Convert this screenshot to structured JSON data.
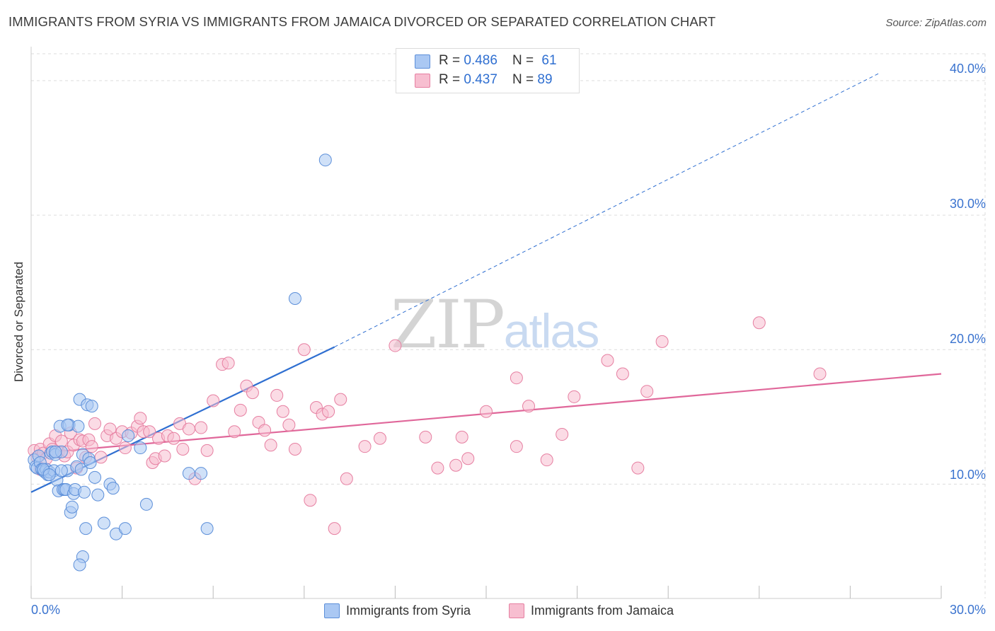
{
  "title": "IMMIGRANTS FROM SYRIA VS IMMIGRANTS FROM JAMAICA DIVORCED OR SEPARATED CORRELATION CHART",
  "source": "Source: ZipAtlas.com",
  "watermark": {
    "zip": "ZIP",
    "atlas": "atlas"
  },
  "colors": {
    "syria_fill": "#aac8f3",
    "syria_stroke": "#5c8fd9",
    "syria_line": "#2f6fd1",
    "jamaica_fill": "#f7bed0",
    "jamaica_stroke": "#e67fa1",
    "jamaica_line": "#e0679a",
    "tick_label": "#3a73cf",
    "grid": "#dddddd"
  },
  "legend": {
    "rows": [
      {
        "r_label": "R = ",
        "r_value": "0.486",
        "n_label": "N = ",
        "n_value": "61"
      },
      {
        "r_label": "R = ",
        "r_value": "0.437",
        "n_label": "N = ",
        "n_value": "89"
      }
    ]
  },
  "chart_data": {
    "type": "scatter",
    "title": "IMMIGRANTS FROM SYRIA VS IMMIGRANTS FROM JAMAICA DIVORCED OR SEPARATED CORRELATION CHART",
    "xlabel": "",
    "ylabel": "Divorced or Separated",
    "xlim": [
      0,
      30
    ],
    "ylim": [
      1.5,
      42
    ],
    "x_tick_labels": {
      "left": "0.0%",
      "right": "30.0%"
    },
    "y_ticks": [
      10,
      20,
      30,
      40
    ],
    "y_tick_labels": [
      "10.0%",
      "20.0%",
      "30.0%",
      "40.0%"
    ],
    "grid": true,
    "legend_position": "top-center",
    "series": [
      {
        "name": "Immigrants from Syria",
        "R": 0.486,
        "N": 61,
        "trend": {
          "x0": 0,
          "y0": 9.4,
          "x1": 10.0,
          "y1": 20.2,
          "dashed_to_x": 28.0,
          "dashed_to_y": 40.6
        },
        "points": [
          [
            0.1,
            11.8
          ],
          [
            0.15,
            11.3
          ],
          [
            0.2,
            11.2
          ],
          [
            0.25,
            12.1
          ],
          [
            0.3,
            11.6
          ],
          [
            0.35,
            11.1
          ],
          [
            0.4,
            11.0
          ],
          [
            0.45,
            10.9
          ],
          [
            0.5,
            11.1
          ],
          [
            0.55,
            10.7
          ],
          [
            0.6,
            10.9
          ],
          [
            0.65,
            12.3
          ],
          [
            0.7,
            12.4
          ],
          [
            0.75,
            11.0
          ],
          [
            0.8,
            12.2
          ],
          [
            0.85,
            10.3
          ],
          [
            0.9,
            9.5
          ],
          [
            0.95,
            14.3
          ],
          [
            1.0,
            12.4
          ],
          [
            1.05,
            9.6
          ],
          [
            1.1,
            9.6
          ],
          [
            1.15,
            9.6
          ],
          [
            1.2,
            11.0
          ],
          [
            1.25,
            14.4
          ],
          [
            1.3,
            7.9
          ],
          [
            1.35,
            8.3
          ],
          [
            1.4,
            9.3
          ],
          [
            1.45,
            9.6
          ],
          [
            1.5,
            11.3
          ],
          [
            1.55,
            14.3
          ],
          [
            1.6,
            16.3
          ],
          [
            1.65,
            11.1
          ],
          [
            1.7,
            12.2
          ],
          [
            1.75,
            9.4
          ],
          [
            1.8,
            6.7
          ],
          [
            1.85,
            15.9
          ],
          [
            1.9,
            11.9
          ],
          [
            1.95,
            11.6
          ],
          [
            2.0,
            15.8
          ],
          [
            2.1,
            10.5
          ],
          [
            2.2,
            9.2
          ],
          [
            2.4,
            7.1
          ],
          [
            2.6,
            10.0
          ],
          [
            2.7,
            9.7
          ],
          [
            2.8,
            6.3
          ],
          [
            3.1,
            6.7
          ],
          [
            3.6,
            12.7
          ],
          [
            3.8,
            8.5
          ],
          [
            5.2,
            10.8
          ],
          [
            5.6,
            10.8
          ],
          [
            5.8,
            6.7
          ],
          [
            3.2,
            13.6
          ],
          [
            1.0,
            11.0
          ],
          [
            0.8,
            12.4
          ],
          [
            1.2,
            14.4
          ],
          [
            0.4,
            11.1
          ],
          [
            0.6,
            10.7
          ],
          [
            1.7,
            4.6
          ],
          [
            1.6,
            4.0
          ],
          [
            8.7,
            23.8
          ],
          [
            9.7,
            34.1
          ]
        ]
      },
      {
        "name": "Immigrants from Jamaica",
        "R": 0.437,
        "N": 89,
        "trend": {
          "x0": 0.2,
          "y0": 12.3,
          "x1": 30.0,
          "y1": 18.2
        },
        "points": [
          [
            0.1,
            12.5
          ],
          [
            0.2,
            12.0
          ],
          [
            0.3,
            12.6
          ],
          [
            0.4,
            12.3
          ],
          [
            0.5,
            11.9
          ],
          [
            0.6,
            13.0
          ],
          [
            0.7,
            12.6
          ],
          [
            0.8,
            13.6
          ],
          [
            0.9,
            12.4
          ],
          [
            1.0,
            13.2
          ],
          [
            1.1,
            12.1
          ],
          [
            1.2,
            12.4
          ],
          [
            1.3,
            13.8
          ],
          [
            1.4,
            12.9
          ],
          [
            1.5,
            11.2
          ],
          [
            1.6,
            13.3
          ],
          [
            1.7,
            13.2
          ],
          [
            1.8,
            12.0
          ],
          [
            1.9,
            13.3
          ],
          [
            2.0,
            12.8
          ],
          [
            2.1,
            14.5
          ],
          [
            2.3,
            12.0
          ],
          [
            2.5,
            13.6
          ],
          [
            2.6,
            14.1
          ],
          [
            2.8,
            13.4
          ],
          [
            3.0,
            13.9
          ],
          [
            3.1,
            12.7
          ],
          [
            3.3,
            13.8
          ],
          [
            3.5,
            14.3
          ],
          [
            3.6,
            14.9
          ],
          [
            3.7,
            13.9
          ],
          [
            3.9,
            13.9
          ],
          [
            4.0,
            11.6
          ],
          [
            4.1,
            11.9
          ],
          [
            4.2,
            13.4
          ],
          [
            4.4,
            12.1
          ],
          [
            4.5,
            13.6
          ],
          [
            4.7,
            13.4
          ],
          [
            4.9,
            14.5
          ],
          [
            5.0,
            12.6
          ],
          [
            5.2,
            14.1
          ],
          [
            5.4,
            10.4
          ],
          [
            5.6,
            14.2
          ],
          [
            5.8,
            12.5
          ],
          [
            6.0,
            16.2
          ],
          [
            6.3,
            18.9
          ],
          [
            6.5,
            19.0
          ],
          [
            6.7,
            13.9
          ],
          [
            6.9,
            15.5
          ],
          [
            7.1,
            17.3
          ],
          [
            7.3,
            16.8
          ],
          [
            7.5,
            14.6
          ],
          [
            7.7,
            14.0
          ],
          [
            7.9,
            12.9
          ],
          [
            8.1,
            16.6
          ],
          [
            8.3,
            15.4
          ],
          [
            8.5,
            14.4
          ],
          [
            8.7,
            12.6
          ],
          [
            9.0,
            20.0
          ],
          [
            9.2,
            8.8
          ],
          [
            9.4,
            15.7
          ],
          [
            9.6,
            15.2
          ],
          [
            9.8,
            15.4
          ],
          [
            10.0,
            6.7
          ],
          [
            10.2,
            16.3
          ],
          [
            10.4,
            10.4
          ],
          [
            11.0,
            12.8
          ],
          [
            11.5,
            13.4
          ],
          [
            12.0,
            20.3
          ],
          [
            13.0,
            13.5
          ],
          [
            13.4,
            11.2
          ],
          [
            14.0,
            11.4
          ],
          [
            14.2,
            13.5
          ],
          [
            14.4,
            11.9
          ],
          [
            15.0,
            15.4
          ],
          [
            16.0,
            17.9
          ],
          [
            16.4,
            15.8
          ],
          [
            16.0,
            12.8
          ],
          [
            17.0,
            11.8
          ],
          [
            17.5,
            13.7
          ],
          [
            17.9,
            16.5
          ],
          [
            19.0,
            19.2
          ],
          [
            19.5,
            18.2
          ],
          [
            20.0,
            11.2
          ],
          [
            20.3,
            16.9
          ],
          [
            20.8,
            20.6
          ],
          [
            24.0,
            22.0
          ],
          [
            26.0,
            18.2
          ],
          [
            0.3,
            11.1
          ]
        ]
      }
    ]
  },
  "bottom_legend": [
    {
      "label": "Immigrants from Syria"
    },
    {
      "label": "Immigrants from Jamaica"
    }
  ]
}
